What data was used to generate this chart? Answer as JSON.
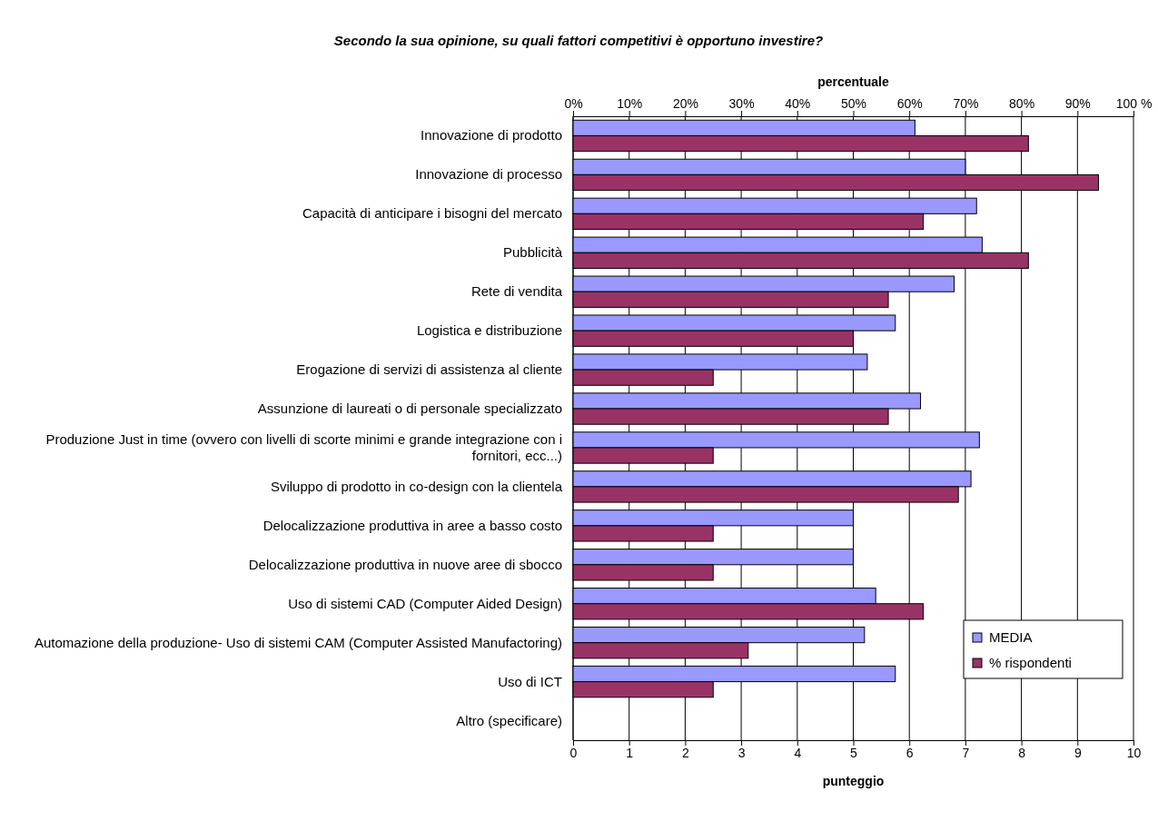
{
  "chart_data": {
    "type": "bar",
    "orientation": "horizontal",
    "title": "Secondo la sua opinione, su quali fattori competitivi è opportuno investire?",
    "xlabel": "punteggio",
    "x2label": "percentuale",
    "categories": [
      "Innovazione di prodotto",
      "Innovazione di processo",
      "Capacità di anticipare i bisogni del mercato",
      "Pubblicità",
      "Rete di vendita",
      "Logistica e distribuzione",
      "Erogazione di servizi di assistenza al cliente",
      "Assunzione di laureati o di personale specializzato",
      "Produzione Just in time (ovvero con livelli di scorte minimi e grande integrazione con i fornitori, ecc...)",
      "Sviluppo di prodotto in co-design con la clientela",
      "Delocalizzazione produttiva in aree a basso costo",
      "Delocalizzazione produttiva in nuove aree di sbocco",
      "Uso di sistemi CAD (Computer Aided Design)",
      "Automazione della produzione- Uso di sistemi CAM (Computer Assisted Manufactoring)",
      "Uso di ICT",
      "Altro (specificare)"
    ],
    "series": [
      {
        "name": "MEDIA",
        "color": "#9999ff",
        "values": [
          6.1,
          7.0,
          7.2,
          7.3,
          6.8,
          5.75,
          5.25,
          6.2,
          7.25,
          7.1,
          5.0,
          5.0,
          5.4,
          5.2,
          5.75,
          null
        ]
      },
      {
        "name": "% rispondenti",
        "color": "#993366",
        "axis": "x2",
        "values": [
          81.25,
          93.75,
          62.5,
          81.25,
          56.25,
          50,
          25,
          56.25,
          25,
          68.75,
          25,
          25,
          62.5,
          31.25,
          25,
          null
        ]
      }
    ],
    "xlim": [
      0,
      10
    ],
    "xticks": [
      0,
      1,
      2,
      3,
      4,
      5,
      6,
      7,
      8,
      9,
      10
    ],
    "x2lim": [
      0,
      100
    ],
    "x2ticks": [
      {
        "value": 0,
        "label": "0%"
      },
      {
        "value": 10,
        "label": "10%"
      },
      {
        "value": 20,
        "label": "20%"
      },
      {
        "value": 30,
        "label": "30%"
      },
      {
        "value": 40,
        "label": "40%"
      },
      {
        "value": 50,
        "label": "50%"
      },
      {
        "value": 60,
        "label": "60%"
      },
      {
        "value": 70,
        "label": "70%"
      },
      {
        "value": 80,
        "label": "80%"
      },
      {
        "value": 90,
        "label": "90%"
      },
      {
        "value": 100,
        "label": "100 %"
      }
    ],
    "grid": "x",
    "legend": "bottom right"
  }
}
